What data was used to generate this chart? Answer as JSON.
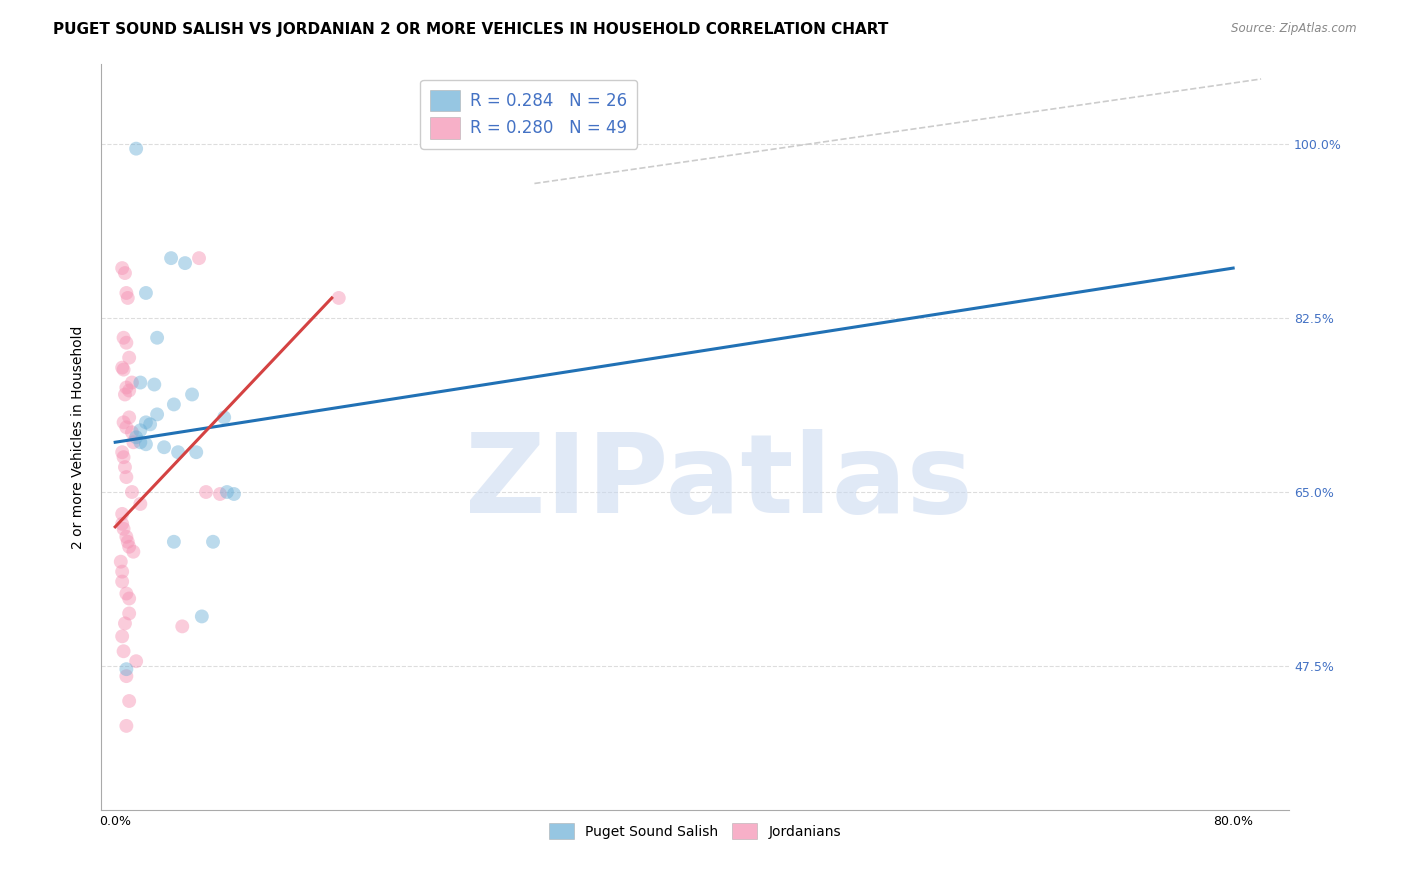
{
  "title": "PUGET SOUND SALISH VS JORDANIAN 2 OR MORE VEHICLES IN HOUSEHOLD CORRELATION CHART",
  "source": "Source: ZipAtlas.com",
  "ylabel": "2 or more Vehicles in Household",
  "x_ticks": [
    0.0,
    0.08,
    0.16,
    0.24,
    0.32,
    0.4,
    0.48,
    0.56,
    0.64,
    0.72,
    0.8
  ],
  "x_tick_labels": [
    "0.0%",
    "",
    "",
    "",
    "",
    "",
    "",
    "",
    "",
    "",
    "80.0%"
  ],
  "y_ticks": [
    0.475,
    0.65,
    0.825,
    1.0
  ],
  "y_tick_labels": [
    "47.5%",
    "65.0%",
    "82.5%",
    "100.0%"
  ],
  "xlim": [
    -0.01,
    0.84
  ],
  "ylim": [
    0.33,
    1.08
  ],
  "legend_entries": [
    {
      "label": "R = 0.284   N = 26",
      "color": "#a8c8e8"
    },
    {
      "label": "R = 0.280   N = 49",
      "color": "#f4b8cc"
    }
  ],
  "legend_labels_bottom": [
    "Puget Sound Salish",
    "Jordanians"
  ],
  "blue_scatter": [
    [
      0.015,
      0.995
    ],
    [
      0.04,
      0.885
    ],
    [
      0.05,
      0.88
    ],
    [
      0.022,
      0.85
    ],
    [
      0.03,
      0.805
    ],
    [
      0.018,
      0.76
    ],
    [
      0.028,
      0.758
    ],
    [
      0.055,
      0.748
    ],
    [
      0.042,
      0.738
    ],
    [
      0.03,
      0.728
    ],
    [
      0.022,
      0.72
    ],
    [
      0.025,
      0.718
    ],
    [
      0.018,
      0.712
    ],
    [
      0.015,
      0.705
    ],
    [
      0.018,
      0.7
    ],
    [
      0.022,
      0.698
    ],
    [
      0.035,
      0.695
    ],
    [
      0.045,
      0.69
    ],
    [
      0.078,
      0.725
    ],
    [
      0.058,
      0.69
    ],
    [
      0.08,
      0.65
    ],
    [
      0.085,
      0.648
    ],
    [
      0.042,
      0.6
    ],
    [
      0.07,
      0.6
    ],
    [
      0.062,
      0.525
    ],
    [
      0.008,
      0.472
    ]
  ],
  "pink_scatter": [
    [
      0.06,
      0.885
    ],
    [
      0.005,
      0.875
    ],
    [
      0.007,
      0.87
    ],
    [
      0.008,
      0.85
    ],
    [
      0.009,
      0.845
    ],
    [
      0.16,
      0.845
    ],
    [
      0.006,
      0.805
    ],
    [
      0.008,
      0.8
    ],
    [
      0.01,
      0.785
    ],
    [
      0.005,
      0.775
    ],
    [
      0.006,
      0.773
    ],
    [
      0.012,
      0.76
    ],
    [
      0.008,
      0.755
    ],
    [
      0.01,
      0.752
    ],
    [
      0.007,
      0.748
    ],
    [
      0.01,
      0.725
    ],
    [
      0.006,
      0.72
    ],
    [
      0.008,
      0.715
    ],
    [
      0.012,
      0.71
    ],
    [
      0.013,
      0.7
    ],
    [
      0.005,
      0.69
    ],
    [
      0.006,
      0.685
    ],
    [
      0.007,
      0.675
    ],
    [
      0.008,
      0.665
    ],
    [
      0.012,
      0.65
    ],
    [
      0.065,
      0.65
    ],
    [
      0.075,
      0.648
    ],
    [
      0.018,
      0.638
    ],
    [
      0.005,
      0.628
    ],
    [
      0.005,
      0.618
    ],
    [
      0.006,
      0.613
    ],
    [
      0.008,
      0.605
    ],
    [
      0.009,
      0.6
    ],
    [
      0.01,
      0.595
    ],
    [
      0.013,
      0.59
    ],
    [
      0.004,
      0.58
    ],
    [
      0.005,
      0.57
    ],
    [
      0.005,
      0.56
    ],
    [
      0.008,
      0.548
    ],
    [
      0.01,
      0.543
    ],
    [
      0.01,
      0.528
    ],
    [
      0.007,
      0.518
    ],
    [
      0.048,
      0.515
    ],
    [
      0.005,
      0.505
    ],
    [
      0.006,
      0.49
    ],
    [
      0.015,
      0.48
    ],
    [
      0.008,
      0.465
    ],
    [
      0.01,
      0.44
    ],
    [
      0.008,
      0.415
    ]
  ],
  "blue_line": {
    "x": [
      0.0,
      0.8
    ],
    "y": [
      0.7,
      0.875
    ]
  },
  "pink_line": {
    "x": [
      0.0,
      0.155
    ],
    "y": [
      0.615,
      0.845
    ]
  },
  "ref_line": {
    "x": [
      0.3,
      0.82
    ],
    "y": [
      0.96,
      1.065
    ]
  },
  "scatter_size": 100,
  "scatter_alpha": 0.45,
  "blue_color": "#6aaed6",
  "pink_color": "#f48fb1",
  "blue_line_color": "#2171b5",
  "pink_line_color": "#d44242",
  "ref_line_color": "#cccccc",
  "watermark_text": "ZIPatlas",
  "watermark_color": "#c8d8f0",
  "grid_color": "#dddddd",
  "title_fontsize": 11,
  "axis_label_fontsize": 10,
  "tick_fontsize": 9,
  "right_tick_color": "#4472c4"
}
